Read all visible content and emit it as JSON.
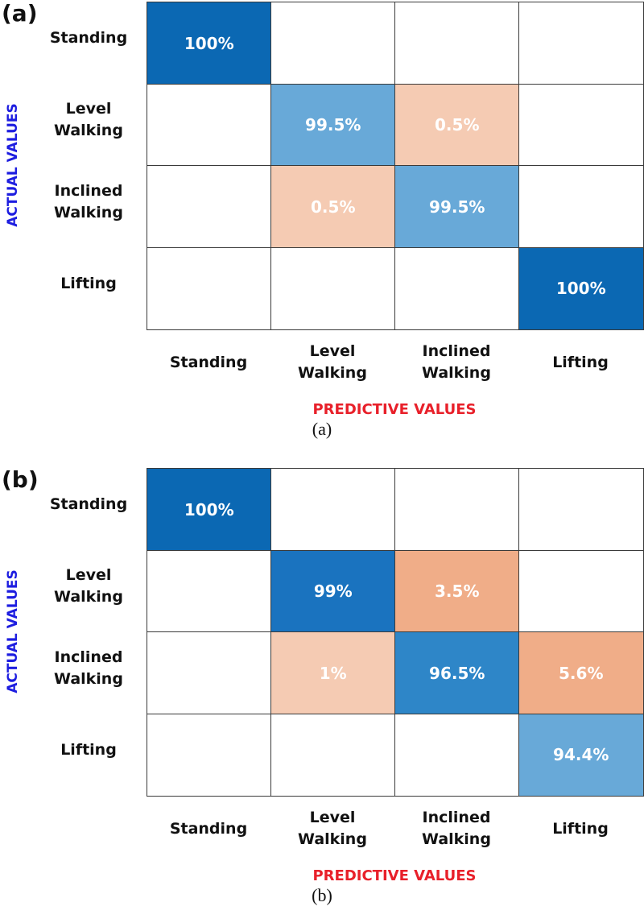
{
  "chart_data": [
    {
      "type": "heatmap",
      "panel_label": "(a)",
      "caption": "(a)",
      "x_label": "PREDICTIVE VALUES",
      "y_label": "ACTUAL VALUES",
      "x_categories": [
        "Standing",
        "Level Walking",
        "Inclined Walking",
        "Lifting"
      ],
      "y_categories": [
        "Standing",
        "Level Walking",
        "Inclined Walking",
        "Lifting"
      ],
      "values": [
        [
          100,
          null,
          null,
          null
        ],
        [
          null,
          99.5,
          0.5,
          null
        ],
        [
          null,
          0.5,
          99.5,
          null
        ],
        [
          null,
          null,
          null,
          100
        ]
      ],
      "value_labels": [
        [
          "100%",
          null,
          null,
          null
        ],
        [
          null,
          "99.5%",
          "0.5%",
          null
        ],
        [
          null,
          "0.5%",
          "99.5%",
          null
        ],
        [
          null,
          null,
          null,
          "100%"
        ]
      ],
      "colors": [
        [
          "#0b68b3",
          null,
          null,
          null
        ],
        [
          null,
          "#68a9d8",
          "#f5cbb3",
          null
        ],
        [
          null,
          "#f5cbb3",
          "#68a9d8",
          null
        ],
        [
          null,
          null,
          null,
          "#0b68b3"
        ]
      ]
    },
    {
      "type": "heatmap",
      "panel_label": "(b)",
      "caption": "(b)",
      "x_label": "PREDICTIVE VALUES",
      "y_label": "ACTUAL VALUES",
      "x_categories": [
        "Standing",
        "Level Walking",
        "Inclined Walking",
        "Lifting"
      ],
      "y_categories": [
        "Standing",
        "Level Walking",
        "Inclined Walking",
        "Lifting"
      ],
      "values": [
        [
          100,
          null,
          null,
          null
        ],
        [
          null,
          99,
          3.5,
          null
        ],
        [
          null,
          1,
          96.5,
          5.6
        ],
        [
          null,
          null,
          null,
          94.4
        ]
      ],
      "value_labels": [
        [
          "100%",
          null,
          null,
          null
        ],
        [
          null,
          "99%",
          "3.5%",
          null
        ],
        [
          null,
          "1%",
          "96.5%",
          "5.6%"
        ],
        [
          null,
          null,
          null,
          "94.4%"
        ]
      ],
      "colors": [
        [
          "#0b68b3",
          null,
          null,
          null
        ],
        [
          null,
          "#1a73bf",
          "#f0ad88",
          null
        ],
        [
          null,
          "#f5cbb3",
          "#2e86c8",
          "#f0ad88"
        ],
        [
          null,
          null,
          null,
          "#68a9d8"
        ]
      ]
    }
  ]
}
